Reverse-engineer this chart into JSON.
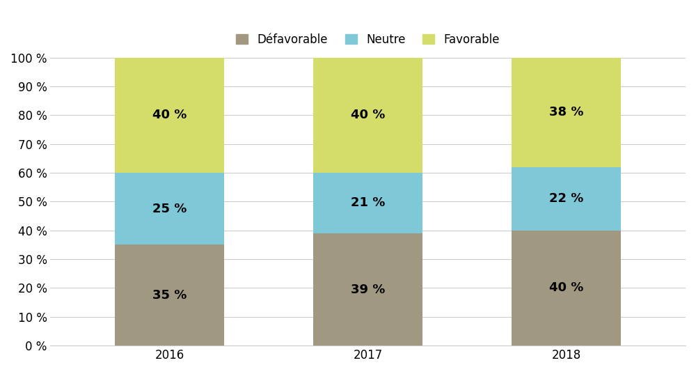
{
  "years": [
    "2016",
    "2017",
    "2018"
  ],
  "defavorable": [
    35,
    39,
    40
  ],
  "neutre": [
    25,
    21,
    22
  ],
  "favorable": [
    40,
    40,
    38
  ],
  "color_defavorable": "#a09880",
  "color_neutre": "#7ec8d8",
  "color_favorable": "#d4dc6a",
  "legend_labels": [
    "Défavorable",
    "Neutre",
    "Favorable"
  ],
  "yticks": [
    0,
    10,
    20,
    30,
    40,
    50,
    60,
    70,
    80,
    90,
    100
  ],
  "ylabel_format": "{} %",
  "bar_width": 0.55,
  "label_fontsize": 13,
  "legend_fontsize": 12,
  "tick_fontsize": 12,
  "background_color": "#ffffff"
}
